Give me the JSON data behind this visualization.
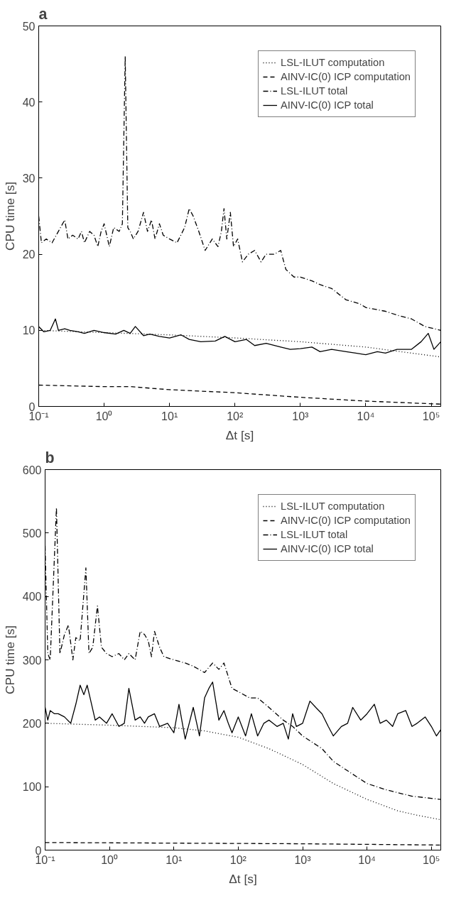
{
  "chart_data": [
    {
      "type": "line",
      "title": "a",
      "xlabel": "Δt [s]",
      "ylabel": "CPU time [s]",
      "log": "x",
      "grid": false,
      "legend": "top right",
      "xlim": [
        0.1,
        140000
      ],
      "ylim": [
        0,
        50
      ],
      "yticks": [
        0,
        10,
        20,
        30,
        40,
        50
      ],
      "xticks": [
        {
          "value": 0.1,
          "label": "10⁻¹"
        },
        {
          "value": 1,
          "label": "10⁰"
        },
        {
          "value": 10,
          "label": "10¹"
        },
        {
          "value": 100,
          "label": "10²"
        },
        {
          "value": 1000,
          "label": "10³"
        },
        {
          "value": 10000,
          "label": "10⁴"
        },
        {
          "value": 100000,
          "label": "10⁵"
        }
      ],
      "series": [
        {
          "name": "LSL-ILUT computation",
          "color": "#000000",
          "line_style": "dotted",
          "x": [
            0.1,
            1,
            10,
            100,
            1000,
            10000,
            140000
          ],
          "values": [
            10,
            9.7,
            9.4,
            9.0,
            8.5,
            7.8,
            6.5
          ]
        },
        {
          "name": "AINV-IC(0) ICP computation",
          "color": "#000000",
          "line_style": "dashed",
          "x": [
            0.1,
            1,
            2.5,
            10,
            100,
            1000,
            10000,
            140000
          ],
          "values": [
            2.8,
            2.6,
            2.6,
            2.2,
            1.8,
            1.2,
            0.7,
            0.3
          ]
        },
        {
          "name": "LSL-ILUT total",
          "color": "#000000",
          "line_style": "dashdot",
          "x": [
            0.1,
            0.11,
            0.13,
            0.16,
            0.2,
            0.25,
            0.28,
            0.33,
            0.4,
            0.45,
            0.5,
            0.6,
            0.7,
            0.8,
            0.9,
            1.0,
            1.2,
            1.4,
            1.7,
            1.9,
            2.1,
            2.3,
            2.5,
            2.8,
            3.3,
            4,
            4.6,
            5.3,
            6,
            7,
            8,
            10,
            13,
            17,
            20,
            23,
            28,
            35,
            45,
            55,
            62,
            68,
            75,
            85,
            95,
            110,
            130,
            160,
            200,
            250,
            300,
            400,
            500,
            600,
            800,
            1000,
            1500,
            2000,
            3000,
            5000,
            8000,
            10000,
            20000,
            30000,
            50000,
            80000,
            140000
          ],
          "values": [
            25,
            21.5,
            22,
            21.5,
            23,
            24.5,
            22,
            22.5,
            22,
            23,
            21.5,
            23,
            22.5,
            21,
            23,
            24,
            21,
            23.5,
            23,
            24,
            46,
            23.5,
            23,
            22,
            23,
            25.5,
            23,
            24.5,
            22,
            24,
            22.5,
            22,
            21.5,
            23.5,
            26,
            25,
            23,
            20.5,
            22,
            21,
            23,
            26,
            22,
            25.5,
            21,
            22,
            19,
            20,
            20.5,
            19,
            20,
            20,
            20.5,
            18,
            17,
            17,
            16.5,
            16,
            15.5,
            14,
            13.5,
            13,
            12.5,
            12,
            11.5,
            10.5,
            10
          ]
        },
        {
          "name": "AINV-IC(0) ICP total",
          "color": "#000000",
          "line_style": "solid",
          "x": [
            0.1,
            0.12,
            0.15,
            0.18,
            0.2,
            0.25,
            0.3,
            0.4,
            0.5,
            0.7,
            1,
            1.5,
            2,
            2.5,
            3,
            4,
            5,
            7,
            10,
            15,
            20,
            30,
            50,
            70,
            100,
            150,
            200,
            300,
            500,
            700,
            1000,
            1500,
            2000,
            3000,
            5000,
            7000,
            10000,
            15000,
            20000,
            30000,
            50000,
            70000,
            90000,
            110000,
            140000
          ],
          "values": [
            10.5,
            9.8,
            10,
            11.5,
            10,
            10.2,
            10,
            9.8,
            9.6,
            10,
            9.7,
            9.5,
            10,
            9.6,
            10.5,
            9.3,
            9.5,
            9.2,
            9,
            9.4,
            8.8,
            8.5,
            8.6,
            9.2,
            8.5,
            8.8,
            8,
            8.3,
            7.8,
            7.5,
            7.6,
            7.8,
            7.2,
            7.5,
            7.2,
            7,
            6.8,
            7.2,
            7,
            7.5,
            7.5,
            8.5,
            9.6,
            7.5,
            8.5
          ]
        }
      ]
    },
    {
      "type": "line",
      "title": "b",
      "xlabel": "Δt [s]",
      "ylabel": "CPU time [s]",
      "log": "x",
      "grid": false,
      "legend": "top right",
      "xlim": [
        0.1,
        140000
      ],
      "ylim": [
        0,
        600
      ],
      "yticks": [
        0,
        100,
        200,
        300,
        400,
        500,
        600
      ],
      "xticks": [
        {
          "value": 0.1,
          "label": "10⁻¹"
        },
        {
          "value": 1,
          "label": "10⁰"
        },
        {
          "value": 10,
          "label": "10¹"
        },
        {
          "value": 100,
          "label": "10²"
        },
        {
          "value": 1000,
          "label": "10³"
        },
        {
          "value": 10000,
          "label": "10⁴"
        },
        {
          "value": 100000,
          "label": "10⁵"
        }
      ],
      "series": [
        {
          "name": "LSL-ILUT computation",
          "color": "#000000",
          "line_style": "dotted",
          "x": [
            0.1,
            1,
            10,
            30,
            100,
            300,
            1000,
            3000,
            10000,
            30000,
            60000,
            140000
          ],
          "values": [
            200,
            197,
            193,
            188,
            178,
            160,
            135,
            105,
            80,
            62,
            55,
            48
          ]
        },
        {
          "name": "AINV-IC(0) ICP computation",
          "color": "#000000",
          "line_style": "dashed",
          "x": [
            0.1,
            10,
            1000,
            140000
          ],
          "values": [
            12,
            11,
            10,
            8
          ]
        },
        {
          "name": "LSL-ILUT total",
          "color": "#000000",
          "line_style": "dashdot",
          "x": [
            0.1,
            0.11,
            0.12,
            0.15,
            0.17,
            0.2,
            0.23,
            0.27,
            0.3,
            0.35,
            0.43,
            0.48,
            0.55,
            0.65,
            0.75,
            0.9,
            1.1,
            1.4,
            1.7,
            2,
            2.5,
            3,
            3.5,
            4,
            4.5,
            5,
            6,
            7,
            10,
            15,
            20,
            30,
            40,
            50,
            60,
            80,
            100,
            150,
            200,
            300,
            500,
            700,
            1000,
            2000,
            3000,
            5000,
            10000,
            20000,
            50000,
            140000
          ],
          "values": [
            480,
            310,
            300,
            540,
            310,
            340,
            355,
            300,
            335,
            330,
            445,
            310,
            320,
            385,
            320,
            310,
            305,
            310,
            300,
            310,
            300,
            345,
            340,
            330,
            305,
            345,
            320,
            305,
            300,
            295,
            290,
            280,
            295,
            285,
            295,
            255,
            250,
            240,
            240,
            225,
            205,
            195,
            180,
            160,
            140,
            125,
            105,
            95,
            85,
            80
          ]
        },
        {
          "name": "AINV-IC(0) ICP total",
          "color": "#000000",
          "line_style": "solid",
          "x": [
            0.1,
            0.11,
            0.12,
            0.14,
            0.16,
            0.2,
            0.25,
            0.3,
            0.35,
            0.4,
            0.45,
            0.5,
            0.6,
            0.7,
            0.9,
            1.1,
            1.4,
            1.7,
            2,
            2.5,
            3,
            3.5,
            4,
            5,
            6,
            8,
            10,
            12,
            15,
            20,
            25,
            30,
            35,
            40,
            50,
            60,
            70,
            80,
            100,
            130,
            160,
            200,
            250,
            300,
            400,
            500,
            600,
            700,
            800,
            1000,
            1300,
            1600,
            2000,
            2500,
            3000,
            4000,
            5000,
            6000,
            8000,
            10000,
            13000,
            16000,
            20000,
            25000,
            30000,
            40000,
            50000,
            60000,
            80000,
            100000,
            120000,
            140000
          ],
          "values": [
            225,
            205,
            220,
            215,
            215,
            210,
            200,
            230,
            260,
            245,
            260,
            240,
            205,
            210,
            200,
            215,
            195,
            200,
            255,
            205,
            210,
            200,
            210,
            215,
            195,
            200,
            185,
            230,
            175,
            225,
            180,
            240,
            255,
            265,
            205,
            220,
            200,
            185,
            210,
            180,
            215,
            180,
            200,
            205,
            195,
            200,
            175,
            215,
            195,
            200,
            235,
            225,
            215,
            195,
            180,
            195,
            200,
            225,
            205,
            215,
            230,
            200,
            205,
            195,
            215,
            220,
            195,
            200,
            210,
            195,
            180,
            190
          ]
        }
      ]
    }
  ]
}
